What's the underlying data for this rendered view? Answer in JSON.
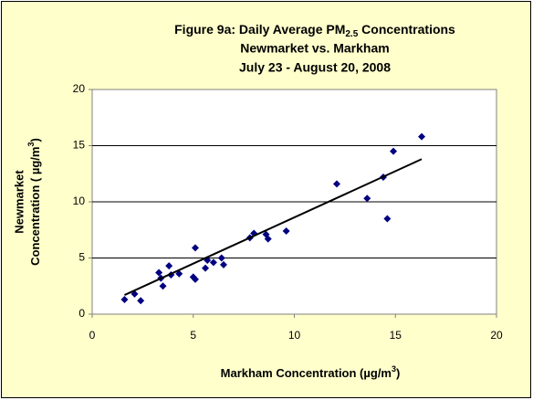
{
  "chart_data": {
    "type": "scatter",
    "title": [
      [
        "Figure 9a:  Daily Average PM",
        "2.5",
        " Concentrations"
      ],
      "Newmarket  vs. Markham",
      "July 23 - August 20, 2008"
    ],
    "x_label": [
      "Markham Concentration (µg/m",
      "3",
      ")"
    ],
    "y_label": [
      "Newmarket",
      [
        "Concentration ( µg/m",
        "3",
        ")"
      ]
    ],
    "x": [
      1.6,
      2.1,
      2.4,
      3.3,
      3.4,
      3.5,
      3.8,
      3.9,
      4.3,
      5.0,
      5.1,
      5.1,
      5.6,
      5.7,
      6.0,
      6.4,
      6.5,
      7.8,
      8.0,
      8.6,
      8.7,
      9.6,
      12.1,
      13.6,
      14.4,
      14.6,
      14.9,
      16.3
    ],
    "values": [
      1.3,
      1.8,
      1.2,
      3.7,
      3.2,
      2.5,
      4.3,
      3.5,
      3.6,
      3.3,
      3.1,
      5.9,
      4.1,
      4.8,
      4.6,
      5.0,
      4.4,
      6.8,
      7.2,
      7.1,
      6.7,
      7.4,
      11.6,
      10.3,
      12.2,
      8.5,
      14.5,
      15.8
    ],
    "color": "#000080",
    "trendline": {
      "x": [
        1.6,
        16.3
      ],
      "y": [
        1.7,
        13.8
      ],
      "color": "#000000"
    },
    "xlim": [
      0,
      20
    ],
    "xticks": [
      0,
      5,
      10,
      15,
      20
    ],
    "ylim": [
      0,
      20
    ],
    "yticks": [
      0,
      5,
      10,
      15,
      20
    ],
    "grid": true
  }
}
